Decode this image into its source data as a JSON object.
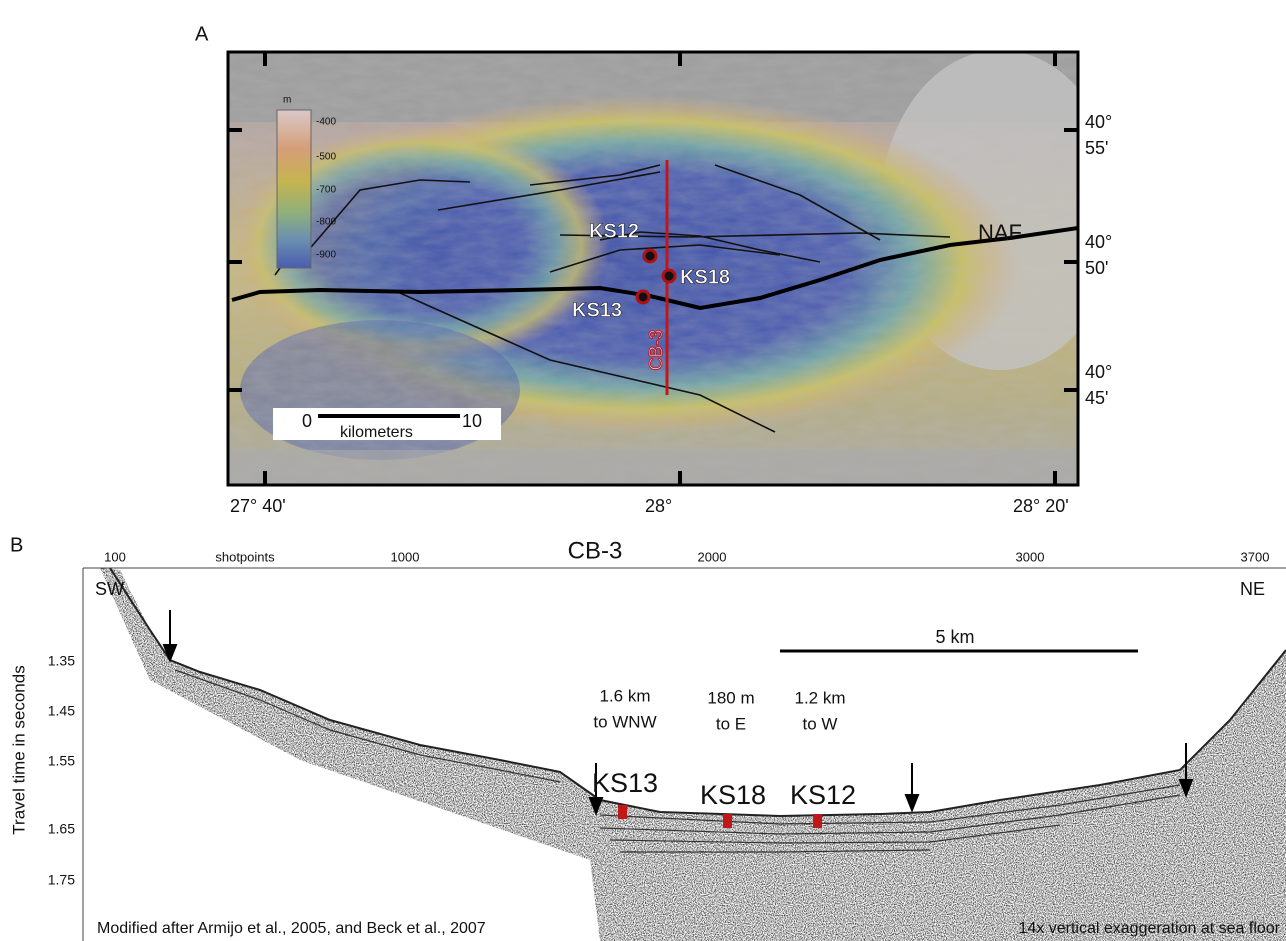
{
  "panel_a": {
    "label": "A",
    "legend": {
      "unit": "m",
      "ticks": [
        "-400",
        "-500",
        "-700",
        "-800",
        "-900"
      ]
    },
    "latitude_labels": [
      {
        "degrees": "40°",
        "minutes": "55'"
      },
      {
        "degrees": "40°",
        "minutes": "50'"
      },
      {
        "degrees": "40°",
        "minutes": "45'"
      }
    ],
    "longitude_labels": [
      "27° 40'",
      "28°",
      "28° 20'"
    ],
    "scale_bar": {
      "start": "0",
      "end": "10",
      "unit": "kilometers"
    },
    "sites": [
      "KS12",
      "KS18",
      "KS13"
    ],
    "profile_label": "CB-3",
    "fault_label": "NAF"
  },
  "panel_b": {
    "label": "B",
    "title": "CB-3",
    "shotpoints_label": "shotpoints",
    "shotpoint_ticks": [
      "100",
      "1000",
      "2000",
      "3000",
      "3700"
    ],
    "y_axis_label": "Travel time in seconds",
    "y_ticks": [
      "1.35",
      "1.45",
      "1.55",
      "1.65",
      "1.75"
    ],
    "left_end": "SW",
    "right_end": "NE",
    "scale": "5 km",
    "offsets": [
      {
        "distance": "1.6 km",
        "direction": "to WNW",
        "site": "KS13"
      },
      {
        "distance": "180 m",
        "direction": "to E",
        "site": "KS18"
      },
      {
        "distance": "1.2 km",
        "direction": "to W",
        "site": "KS12"
      }
    ],
    "source_note": "Modified after Armijo et al., 2005, and Beck et al., 2007",
    "exaggeration_note": "14x vertical exaggeration at sea floor"
  }
}
